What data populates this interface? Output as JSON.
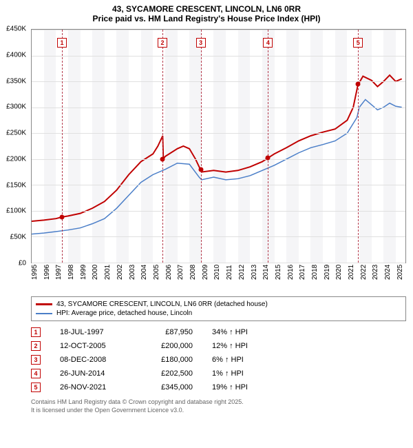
{
  "title1": "43, SYCAMORE CRESCENT, LINCOLN, LN6 0RR",
  "title2": "Price paid vs. HM Land Registry's House Price Index (HPI)",
  "chart": {
    "type": "line",
    "y_min": 0,
    "y_max": 450000,
    "y_ticks": [
      0,
      50000,
      100000,
      150000,
      200000,
      250000,
      300000,
      350000,
      400000,
      450000
    ],
    "y_tick_labels": [
      "£0",
      "£50K",
      "£100K",
      "£150K",
      "£200K",
      "£250K",
      "£300K",
      "£350K",
      "£400K",
      "£450K"
    ],
    "x_min": 1995,
    "x_max": 2025.8,
    "x_ticks": [
      1995,
      1996,
      1997,
      1998,
      1999,
      2000,
      2001,
      2002,
      2003,
      2004,
      2005,
      2006,
      2007,
      2008,
      2009,
      2010,
      2011,
      2012,
      2013,
      2014,
      2015,
      2016,
      2017,
      2018,
      2019,
      2020,
      2021,
      2022,
      2023,
      2024,
      2025
    ],
    "background_color": "#ffffff",
    "grid_color": "#e0e0e0",
    "band_color": "rgba(200,200,210,0.18)",
    "series": {
      "price_paid": {
        "color": "#c00000",
        "width": 2,
        "data": [
          [
            1995,
            80000
          ],
          [
            1996,
            82000
          ],
          [
            1997,
            85000
          ],
          [
            1997.5,
            87950
          ],
          [
            1998,
            90000
          ],
          [
            1999,
            95000
          ],
          [
            2000,
            105000
          ],
          [
            2001,
            118000
          ],
          [
            2002,
            140000
          ],
          [
            2003,
            170000
          ],
          [
            2004,
            195000
          ],
          [
            2005,
            210000
          ],
          [
            2005.4,
            225000
          ],
          [
            2005.8,
            245000
          ],
          [
            2005.85,
            200000
          ],
          [
            2006,
            205000
          ],
          [
            2007,
            220000
          ],
          [
            2007.5,
            225000
          ],
          [
            2008,
            220000
          ],
          [
            2008.5,
            200000
          ],
          [
            2008.9,
            180000
          ],
          [
            2009,
            175000
          ],
          [
            2010,
            178000
          ],
          [
            2011,
            175000
          ],
          [
            2012,
            178000
          ],
          [
            2013,
            185000
          ],
          [
            2014,
            195000
          ],
          [
            2014.5,
            202500
          ],
          [
            2015,
            210000
          ],
          [
            2016,
            222000
          ],
          [
            2017,
            235000
          ],
          [
            2018,
            245000
          ],
          [
            2019,
            252000
          ],
          [
            2020,
            258000
          ],
          [
            2021,
            275000
          ],
          [
            2021.5,
            300000
          ],
          [
            2021.9,
            345000
          ],
          [
            2022,
            348000
          ],
          [
            2022.3,
            360000
          ],
          [
            2023,
            352000
          ],
          [
            2023.5,
            340000
          ],
          [
            2024,
            350000
          ],
          [
            2024.5,
            362000
          ],
          [
            2025,
            350000
          ],
          [
            2025.5,
            355000
          ]
        ]
      },
      "hpi": {
        "color": "#4a7ec8",
        "width": 1.5,
        "data": [
          [
            1995,
            55000
          ],
          [
            1996,
            57000
          ],
          [
            1997,
            60000
          ],
          [
            1998,
            63000
          ],
          [
            1999,
            67000
          ],
          [
            2000,
            75000
          ],
          [
            2001,
            85000
          ],
          [
            2002,
            105000
          ],
          [
            2003,
            130000
          ],
          [
            2004,
            155000
          ],
          [
            2005,
            170000
          ],
          [
            2006,
            180000
          ],
          [
            2007,
            192000
          ],
          [
            2008,
            190000
          ],
          [
            2008.8,
            165000
          ],
          [
            2009,
            160000
          ],
          [
            2010,
            165000
          ],
          [
            2011,
            160000
          ],
          [
            2012,
            162000
          ],
          [
            2013,
            168000
          ],
          [
            2014,
            178000
          ],
          [
            2015,
            188000
          ],
          [
            2016,
            200000
          ],
          [
            2017,
            212000
          ],
          [
            2018,
            222000
          ],
          [
            2019,
            228000
          ],
          [
            2020,
            235000
          ],
          [
            2021,
            250000
          ],
          [
            2021.8,
            280000
          ],
          [
            2022,
            300000
          ],
          [
            2022.5,
            315000
          ],
          [
            2023,
            305000
          ],
          [
            2023.5,
            295000
          ],
          [
            2024,
            300000
          ],
          [
            2024.5,
            308000
          ],
          [
            2025,
            302000
          ],
          [
            2025.5,
            300000
          ]
        ]
      }
    },
    "markers": [
      {
        "n": 1,
        "x": 1997.5,
        "y": 87950
      },
      {
        "n": 2,
        "x": 2005.78,
        "y": 200000
      },
      {
        "n": 3,
        "x": 2008.93,
        "y": 180000
      },
      {
        "n": 4,
        "x": 2014.48,
        "y": 202500
      },
      {
        "n": 5,
        "x": 2021.9,
        "y": 345000
      }
    ]
  },
  "legend": [
    {
      "color": "#c00000",
      "label": "43, SYCAMORE CRESCENT, LINCOLN, LN6 0RR (detached house)"
    },
    {
      "color": "#4a7ec8",
      "label": "HPI: Average price, detached house, Lincoln"
    }
  ],
  "sales": [
    {
      "n": 1,
      "date": "18-JUL-1997",
      "price": "£87,950",
      "pct": "34% ↑ HPI"
    },
    {
      "n": 2,
      "date": "12-OCT-2005",
      "price": "£200,000",
      "pct": "12% ↑ HPI"
    },
    {
      "n": 3,
      "date": "08-DEC-2008",
      "price": "£180,000",
      "pct": "6% ↑ HPI"
    },
    {
      "n": 4,
      "date": "26-JUN-2014",
      "price": "£202,500",
      "pct": "1% ↑ HPI"
    },
    {
      "n": 5,
      "date": "26-NOV-2021",
      "price": "£345,000",
      "pct": "19% ↑ HPI"
    }
  ],
  "footer1": "Contains HM Land Registry data © Crown copyright and database right 2025.",
  "footer2": "It is licensed under the Open Government Licence v3.0."
}
